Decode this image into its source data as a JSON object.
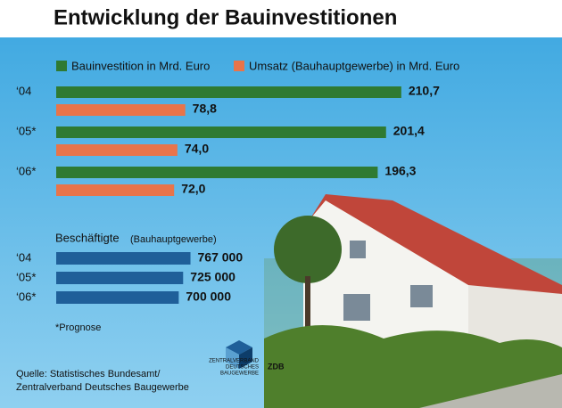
{
  "chart_data": [
    {
      "type": "bar",
      "orientation": "horizontal",
      "title": "Entwicklung der Bauinvestitionen",
      "categories": [
        "‘04",
        "‘05*",
        "‘06*"
      ],
      "series": [
        {
          "name": "Bauinvestition in Mrd. Euro",
          "color": "#2f7a32",
          "values": [
            210.7,
            201.4,
            196.3
          ],
          "value_labels": [
            "210,7",
            "201,4",
            "196,3"
          ]
        },
        {
          "name": "Umsatz (Bauhauptgewerbe) in Mrd. Euro",
          "color": "#e8744a",
          "values": [
            78.8,
            74.0,
            72.0
          ],
          "value_labels": [
            "78,8",
            "74,0",
            "72,0"
          ]
        }
      ],
      "xlim": [
        0,
        250
      ],
      "legend": "top",
      "note": "*Prognose",
      "source": [
        "Quelle: Statistisches Bundesamt/",
        "Zentralverband Deutsches Baugewerbe"
      ],
      "logo": [
        "ZENTRALVERBAND",
        "DEUTSCHES",
        "BAUGEWERBE",
        "ZDB"
      ]
    },
    {
      "type": "bar",
      "orientation": "horizontal",
      "title": "Beschäftigte",
      "subtitle": "(Bauhauptgewerbe)",
      "categories": [
        "‘04",
        "‘05*",
        "‘06*"
      ],
      "values": [
        767000,
        725000,
        700000
      ],
      "value_labels": [
        "767 000",
        "725 000",
        "700 000"
      ],
      "color": "#1f5f99",
      "xlim": [
        0,
        800000
      ]
    }
  ]
}
